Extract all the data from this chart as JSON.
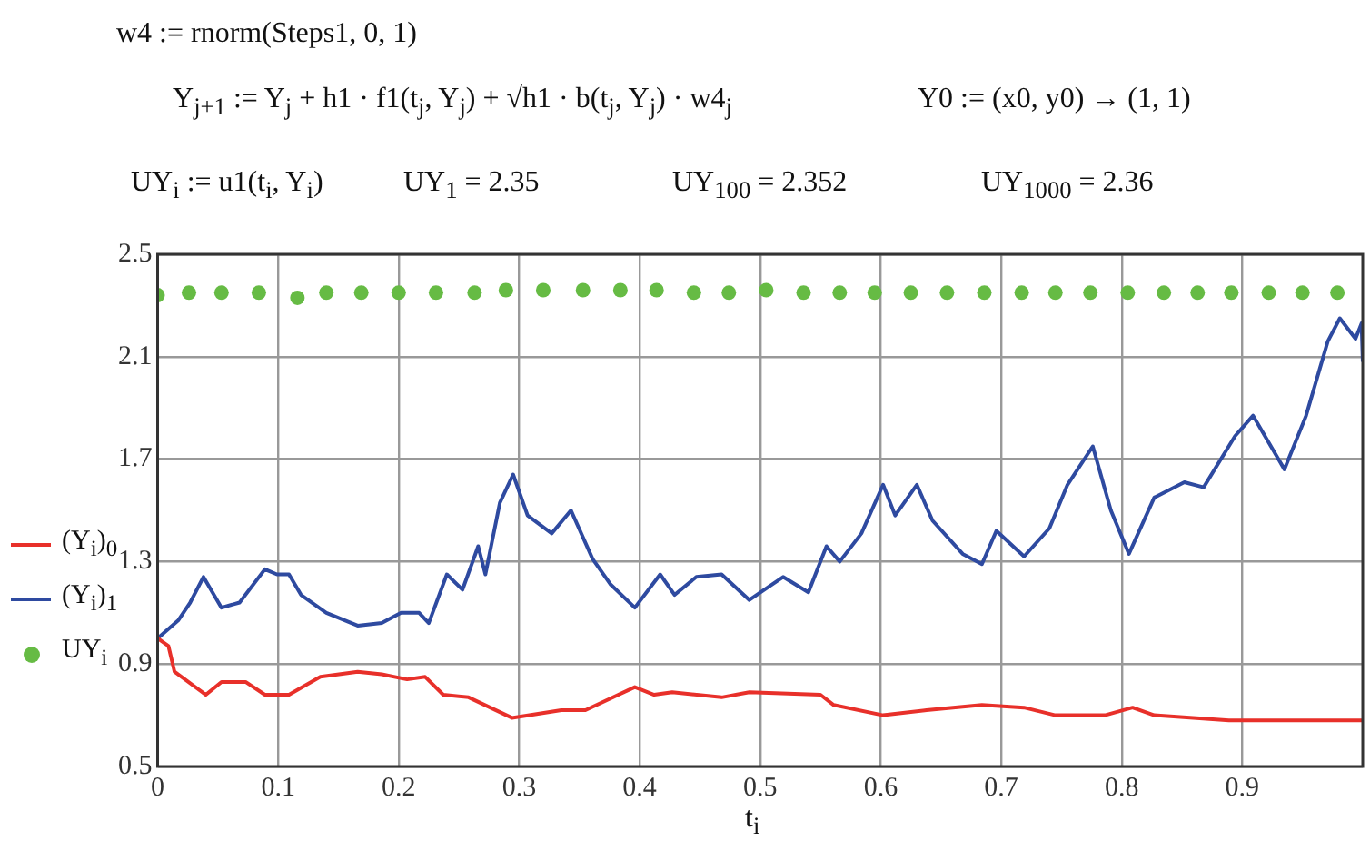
{
  "chart_data": {
    "type": "line",
    "annotations": [
      "w4 := rnorm(Steps1, 0, 1)",
      "Y$_{j+1}$ := Y$_{j}$ + h1 · f1(t$_{j}$, Y$_{j}$) + √h1 · b(t$_{j}$, Y$_{j}$) · w4$_{j}$",
      "Y0 := (x0, y0) → (1, 1)",
      "UY$_{i}$ := u1(t$_{i}$, Y$_{i}$)",
      "UY$_{1}$ = 2.35",
      "UY$_{100}$ = 2.352",
      "UY$_{1000}$ = 2.36"
    ],
    "xlabel": "t$_{i}$",
    "xlim": [
      0,
      1
    ],
    "xticks": [
      0,
      0.1,
      0.2,
      0.3,
      0.4,
      0.5,
      0.6,
      0.7,
      0.8,
      0.9
    ],
    "ylim": [
      0.5,
      2.5
    ],
    "yticks": [
      0.5,
      0.9,
      1.3,
      1.7,
      2.1,
      2.5
    ],
    "grid": true,
    "legend": "left",
    "series": [
      {
        "name": "(Y$_{i}$)$_{0}$",
        "color": "#e8302a",
        "marker": "none",
        "x": [
          0,
          0.009,
          0.014,
          0.04,
          0.053,
          0.073,
          0.089,
          0.109,
          0.135,
          0.166,
          0.186,
          0.207,
          0.222,
          0.237,
          0.258,
          0.294,
          0.335,
          0.355,
          0.396,
          0.412,
          0.427,
          0.468,
          0.491,
          0.55,
          0.561,
          0.602,
          0.638,
          0.684,
          0.719,
          0.745,
          0.786,
          0.809,
          0.827,
          0.889,
          1
        ],
        "values": [
          1.0,
          0.97,
          0.87,
          0.78,
          0.83,
          0.83,
          0.78,
          0.78,
          0.85,
          0.87,
          0.86,
          0.84,
          0.85,
          0.78,
          0.77,
          0.69,
          0.72,
          0.72,
          0.81,
          0.78,
          0.79,
          0.77,
          0.79,
          0.78,
          0.74,
          0.7,
          0.72,
          0.74,
          0.73,
          0.7,
          0.7,
          0.73,
          0.7,
          0.68,
          0.68
        ]
      },
      {
        "name": "(Y$_{i}$)$_{1}$",
        "color": "#2e4aa0",
        "marker": "none",
        "x": [
          0,
          0.017,
          0.027,
          0.038,
          0.053,
          0.068,
          0.089,
          0.099,
          0.109,
          0.119,
          0.14,
          0.166,
          0.186,
          0.202,
          0.217,
          0.225,
          0.24,
          0.253,
          0.266,
          0.272,
          0.284,
          0.295,
          0.307,
          0.327,
          0.343,
          0.361,
          0.376,
          0.396,
          0.417,
          0.429,
          0.447,
          0.468,
          0.491,
          0.519,
          0.54,
          0.555,
          0.566,
          0.584,
          0.602,
          0.612,
          0.63,
          0.643,
          0.668,
          0.684,
          0.696,
          0.719,
          0.74,
          0.755,
          0.776,
          0.791,
          0.806,
          0.827,
          0.852,
          0.868,
          0.894,
          0.909,
          0.935,
          0.953,
          0.971,
          0.981,
          0.994,
          0.999,
          1
        ],
        "values": [
          1.0,
          1.07,
          1.14,
          1.24,
          1.12,
          1.14,
          1.27,
          1.25,
          1.25,
          1.17,
          1.1,
          1.05,
          1.06,
          1.1,
          1.1,
          1.06,
          1.25,
          1.19,
          1.36,
          1.25,
          1.53,
          1.64,
          1.48,
          1.41,
          1.5,
          1.31,
          1.21,
          1.12,
          1.25,
          1.17,
          1.24,
          1.25,
          1.15,
          1.24,
          1.18,
          1.36,
          1.3,
          1.41,
          1.6,
          1.48,
          1.6,
          1.46,
          1.33,
          1.29,
          1.42,
          1.32,
          1.43,
          1.6,
          1.75,
          1.5,
          1.33,
          1.55,
          1.61,
          1.59,
          1.79,
          1.87,
          1.66,
          1.87,
          2.16,
          2.25,
          2.17,
          2.23,
          2.08
        ]
      },
      {
        "name": "UY$_{i}$",
        "type": "scatter",
        "color": "#66bb44",
        "marker": "circle",
        "x": [
          0,
          0.026,
          0.053,
          0.084,
          0.116,
          0.14,
          0.169,
          0.2,
          0.231,
          0.263,
          0.289,
          0.32,
          0.353,
          0.384,
          0.414,
          0.445,
          0.474,
          0.505,
          0.536,
          0.566,
          0.595,
          0.625,
          0.655,
          0.686,
          0.717,
          0.745,
          0.774,
          0.805,
          0.835,
          0.863,
          0.891,
          0.922,
          0.95,
          0.979
        ],
        "values": [
          2.34,
          2.35,
          2.35,
          2.35,
          2.33,
          2.35,
          2.35,
          2.35,
          2.35,
          2.35,
          2.36,
          2.36,
          2.36,
          2.36,
          2.36,
          2.35,
          2.35,
          2.36,
          2.35,
          2.35,
          2.35,
          2.35,
          2.35,
          2.35,
          2.35,
          2.35,
          2.35,
          2.35,
          2.35,
          2.35,
          2.35,
          2.35,
          2.35,
          2.35
        ]
      }
    ]
  }
}
